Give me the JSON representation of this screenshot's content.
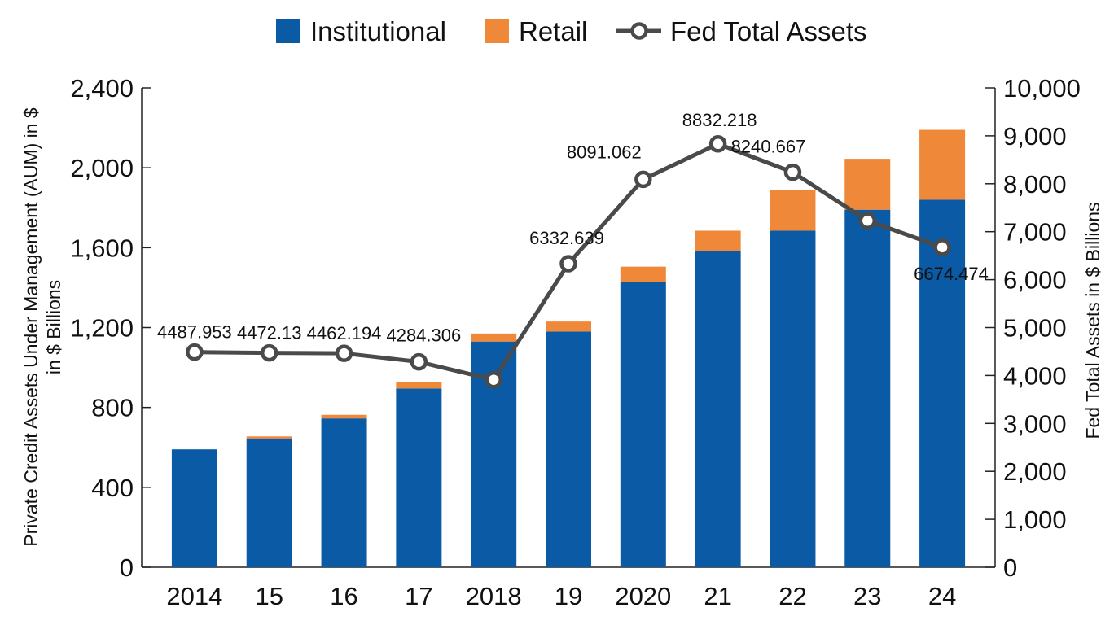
{
  "chart_data": {
    "type": "bar",
    "stacked": true,
    "categories": [
      "2014",
      "15",
      "16",
      "17",
      "2018",
      "19",
      "2020",
      "21",
      "22",
      "23",
      "24"
    ],
    "series": [
      {
        "name": "Institutional",
        "kind": "bar",
        "axis": "left",
        "color": "#0a5aa5",
        "values": [
          590,
          645,
          745,
          895,
          1130,
          1180,
          1430,
          1585,
          1685,
          1790,
          1840
        ]
      },
      {
        "name": "Retail",
        "kind": "bar",
        "axis": "left",
        "color": "#f0883a",
        "values": [
          0,
          10,
          18,
          30,
          40,
          50,
          75,
          100,
          205,
          255,
          350
        ]
      },
      {
        "name": "Fed Total Assets",
        "kind": "line",
        "axis": "right",
        "color": "#4a4a4a",
        "values": [
          4487.953,
          4472.13,
          4462.194,
          4284.306,
          3910,
          6332.639,
          8091.062,
          8832.218,
          8240.667,
          7230,
          6674.474
        ],
        "labels": [
          "4487.953",
          "4472.13",
          "4462.194",
          "4284.306",
          "",
          "6332.639",
          "8091.062",
          "8832.218",
          "8240.667",
          "",
          "6674.474"
        ]
      }
    ],
    "y_left": {
      "label": "Private Credit Assets Under Management (AUM) in $ in $ Billions",
      "label_lines": [
        "Private Credit Assets Under Management (AUM) in $",
        "in $ Billions"
      ],
      "ylim": [
        0,
        2400
      ],
      "ticks": [
        0,
        400,
        800,
        1200,
        1600,
        2000,
        2400
      ],
      "tick_labels": [
        "0",
        "400",
        "800",
        "1,200",
        "1,600",
        "2,000",
        "2,400"
      ]
    },
    "y_right": {
      "label": "Fed Total Assets in $ Billions",
      "ylim": [
        0,
        10000
      ],
      "ticks": [
        0,
        1000,
        2000,
        3000,
        4000,
        5000,
        6000,
        7000,
        8000,
        9000,
        10000
      ],
      "tick_labels": [
        "0",
        "1,000",
        "2,000",
        "3,000",
        "4,000",
        "5,000",
        "6,000",
        "7,000",
        "8,000",
        "9,000",
        "10,000"
      ]
    },
    "legend": {
      "position": "top-center",
      "entries": [
        {
          "label": "Institutional",
          "color": "#0a5aa5",
          "kind": "box"
        },
        {
          "label": "Retail",
          "color": "#f0883a",
          "kind": "box"
        },
        {
          "label": "Fed Total Assets",
          "color": "#4a4a4a",
          "kind": "line-marker"
        }
      ]
    },
    "xlabel": "",
    "title": ""
  }
}
